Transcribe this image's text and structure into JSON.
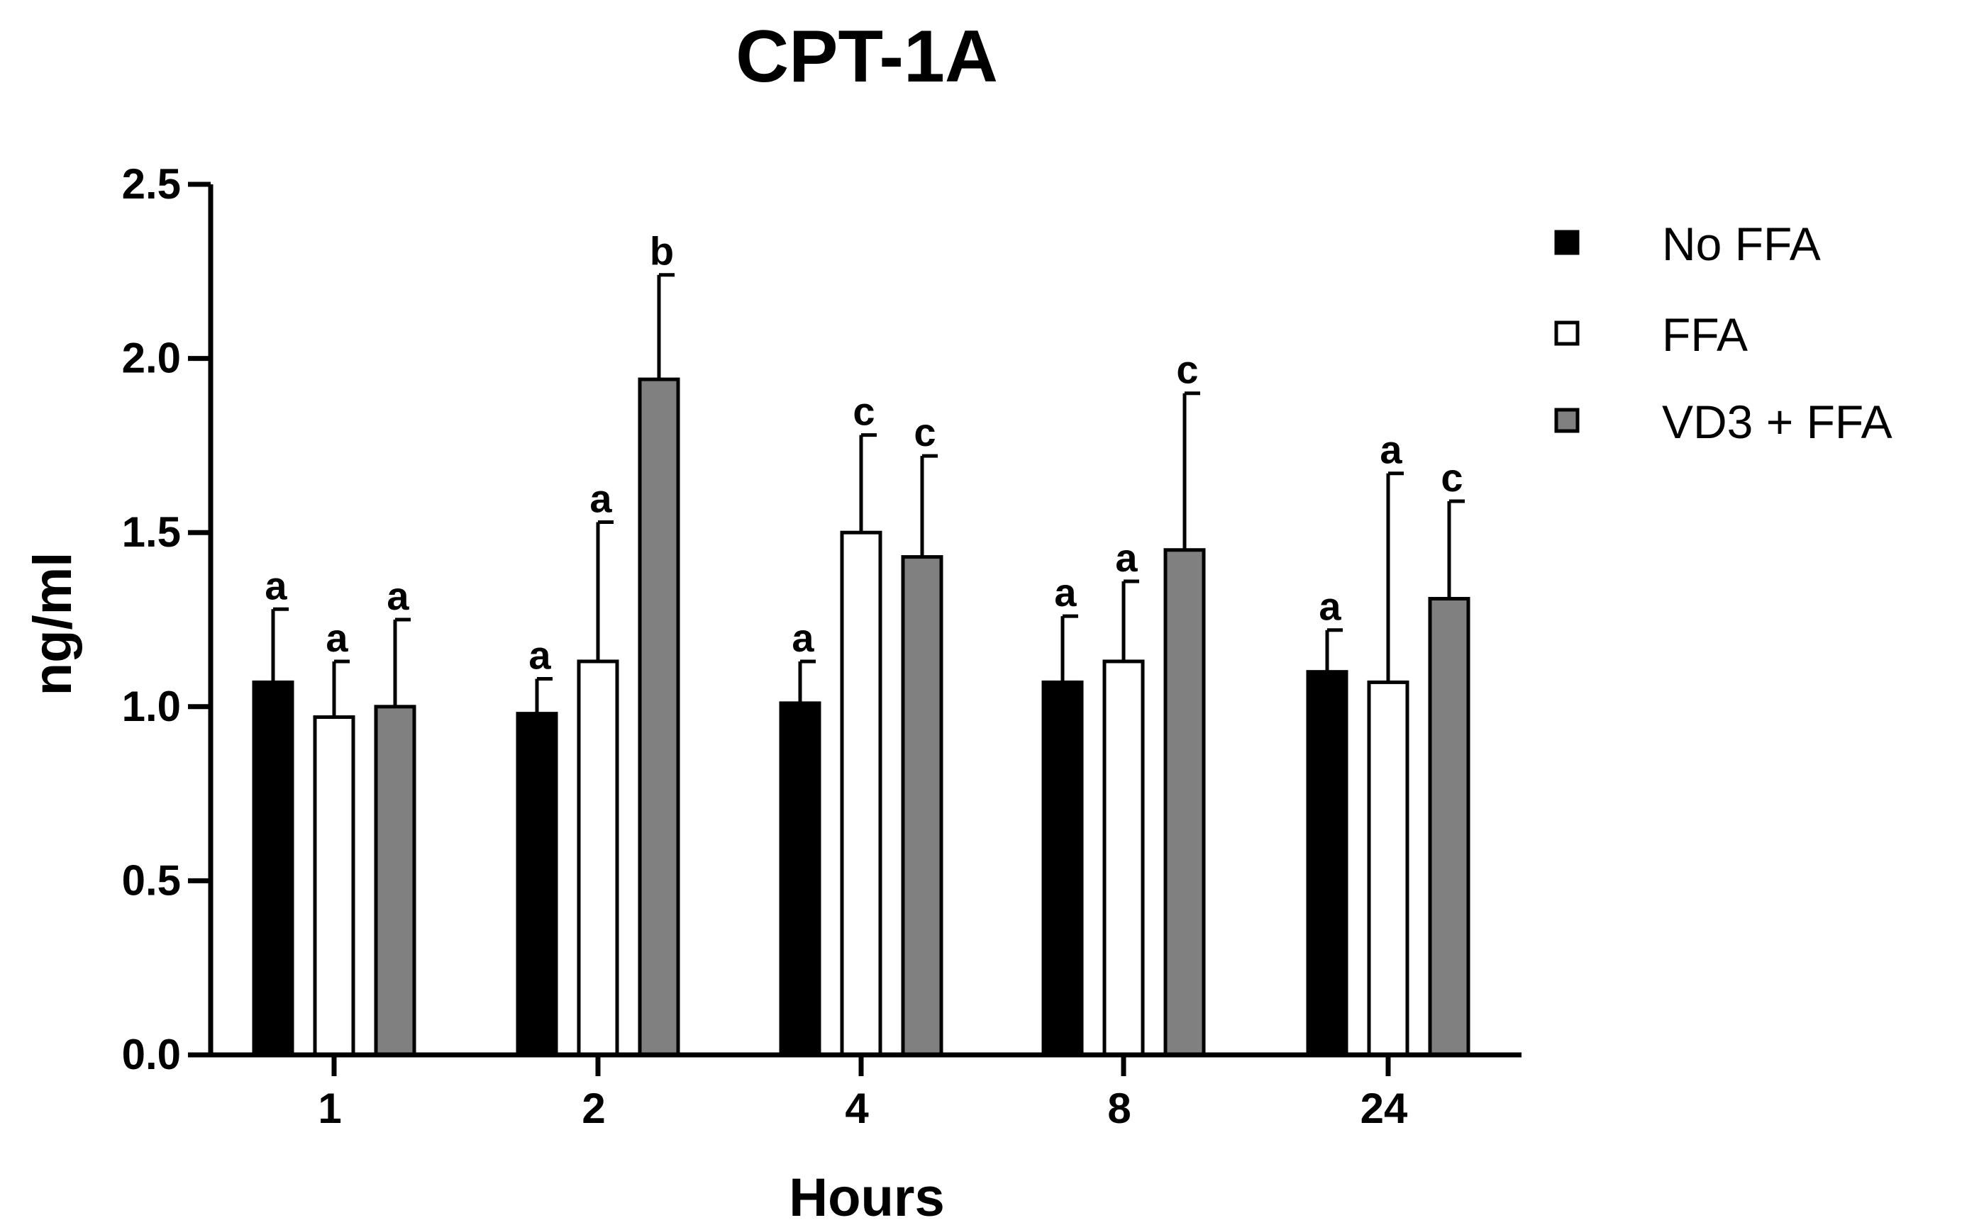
{
  "chart_data": {
    "type": "bar",
    "title": "CPT-1A",
    "xlabel": "Hours",
    "ylabel": "ng/ml",
    "ylim": [
      0,
      2.5
    ],
    "yticks": [
      "0.0",
      "0.5",
      "1.0",
      "1.5",
      "2.0",
      "2.5"
    ],
    "categories": [
      "1",
      "2",
      "4",
      "8",
      "24"
    ],
    "legend_position": "top-right",
    "grid": false,
    "series": [
      {
        "name": "No FFA",
        "color": "#000000",
        "values": [
          1.07,
          0.98,
          1.01,
          1.07,
          1.1
        ],
        "error": [
          0.21,
          0.1,
          0.12,
          0.19,
          0.12
        ],
        "labels": [
          "a",
          "a",
          "a",
          "a",
          "a"
        ]
      },
      {
        "name": "FFA",
        "color": "#ffffff",
        "values": [
          0.97,
          1.13,
          1.5,
          1.13,
          1.07
        ],
        "error": [
          0.16,
          0.4,
          0.28,
          0.23,
          0.6
        ],
        "labels": [
          "a",
          "a",
          "c",
          "a",
          "a"
        ]
      },
      {
        "name": "VD3 + FFA",
        "color": "#808080",
        "values": [
          1.0,
          1.94,
          1.43,
          1.45,
          1.31
        ],
        "error": [
          0.25,
          0.3,
          0.29,
          0.45,
          0.28
        ],
        "labels": [
          "a",
          "b",
          "c",
          "c",
          "c"
        ]
      }
    ]
  }
}
